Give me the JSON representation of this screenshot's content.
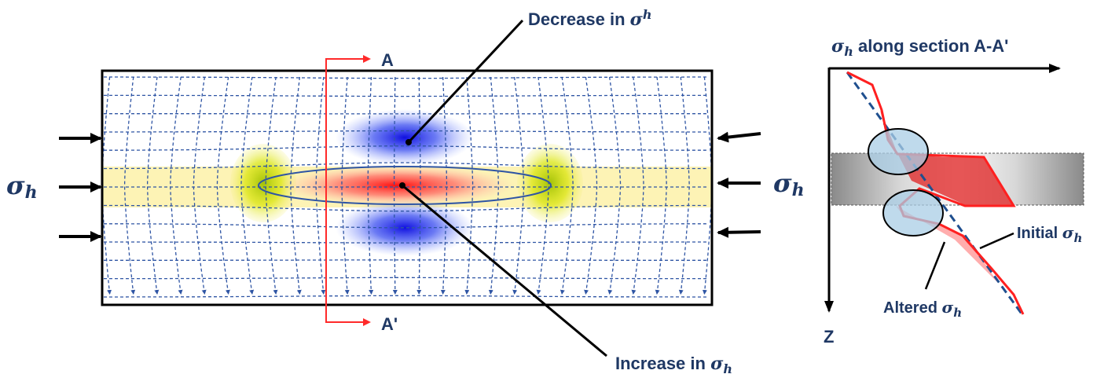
{
  "sigma_symbol": "σ",
  "sigma_subscript": "h",
  "labels": {
    "decrease": "Decrease in ",
    "increase": "Increase in ",
    "section_a": "A",
    "section_a_prime": "A'",
    "profile_title_suffix": " along section A-A'",
    "z_axis": "Z",
    "initial": "Initial ",
    "altered": "Altered "
  },
  "colors": {
    "text": "#1f3864",
    "grid_dash": "#2f55a4",
    "section_line": "#ff2a2a",
    "increase_zone": "#ff3030",
    "decrease_zone": "#1f2fe0",
    "tip_zone": "#c8d800",
    "layer_band": "#fff0a0",
    "ellipse_marker": "#a9cde6"
  }
}
